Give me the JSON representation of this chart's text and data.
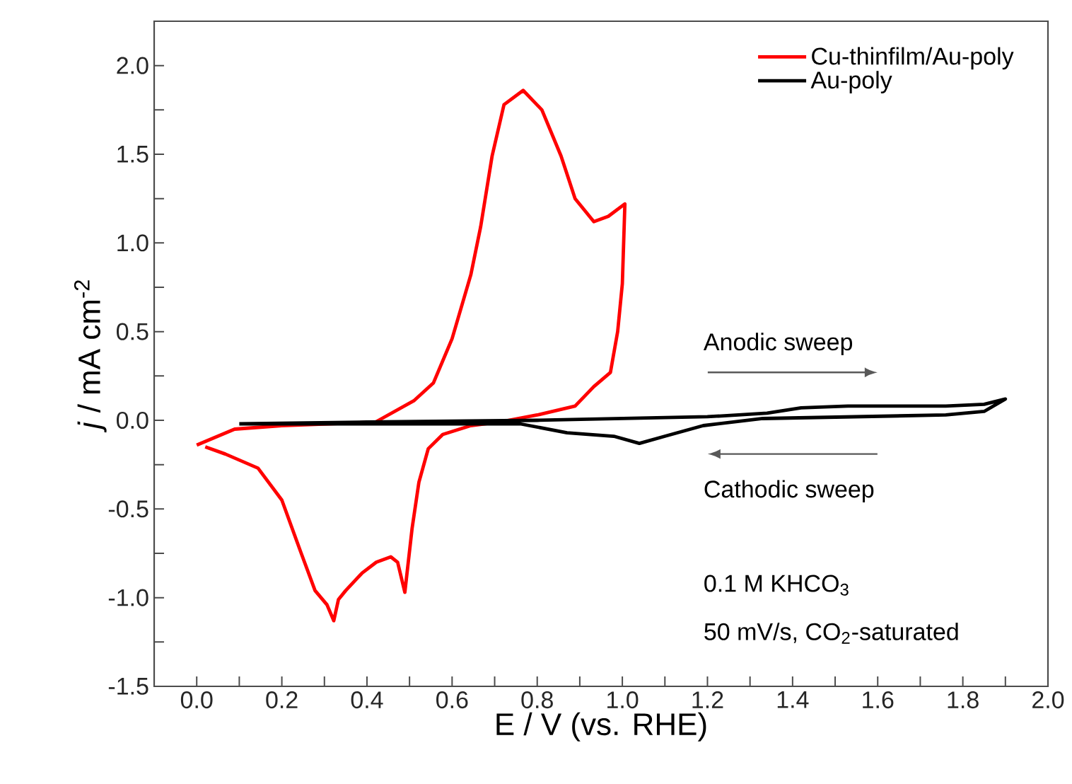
{
  "chart_data": {
    "type": "line",
    "xlabel": "E / V (vs. RHE)",
    "ylabel": "*j* / mA cm$^{-2}$",
    "xlim": [
      -0.1,
      2.0
    ],
    "ylim": [
      -1.5,
      2.25
    ],
    "xticks": [
      {
        "value": 0,
        "label": "0.0"
      },
      {
        "value": 0.1,
        "label": null
      },
      0.2,
      {
        "value": 0.3,
        "label": null
      },
      0.4,
      {
        "value": 0.5,
        "label": null
      },
      0.6,
      {
        "value": 0.7,
        "label": null
      },
      0.8,
      {
        "value": 0.9,
        "label": null
      },
      {
        "value": 1.0,
        "label": "1.0"
      },
      {
        "value": 1.1,
        "label": null
      },
      1.2,
      {
        "value": 1.3,
        "label": null
      },
      1.4,
      {
        "value": 1.5,
        "label": null
      },
      1.6,
      {
        "value": 1.7,
        "label": null
      },
      1.8,
      {
        "value": 1.9,
        "label": null
      },
      {
        "value": 2.0,
        "label": "2.0"
      }
    ],
    "yticks": [
      -1.5,
      {
        "value": -1.25,
        "label": null
      },
      {
        "value": -1.0,
        "label": "-1.0"
      },
      {
        "value": -0.75,
        "label": null
      },
      -0.5,
      {
        "value": -0.25,
        "label": null
      },
      {
        "value": 0,
        "label": "0.0"
      },
      {
        "value": 0.25,
        "label": null
      },
      0.5,
      {
        "value": 0.75,
        "label": null
      },
      {
        "value": 1.0,
        "label": "1.0"
      },
      {
        "value": 1.25,
        "label": null
      },
      1.5,
      {
        "value": 1.75,
        "label": null
      },
      {
        "value": 2.0,
        "label": "2.0"
      }
    ],
    "legend": "top right",
    "grid": false,
    "marker": "none",
    "line_style": "solid",
    "series": [
      {
        "name": "Cu-thinfilm/Au-poly",
        "color": "#ff0000",
        "x": [
          0.0,
          0.089,
          0.2,
          0.42,
          0.51,
          0.556,
          0.6,
          0.644,
          0.667,
          0.694,
          0.722,
          0.767,
          0.811,
          0.856,
          0.889,
          0.933,
          0.967,
          1.006,
          1.0,
          0.989,
          0.972,
          0.933,
          0.889,
          0.8,
          0.711,
          0.644,
          0.578,
          0.544,
          0.522,
          0.506,
          0.489,
          0.472,
          0.456,
          0.422,
          0.389,
          0.35,
          0.333,
          0.322,
          0.306,
          0.278,
          0.244,
          0.2,
          0.144,
          0.067,
          0.02
        ],
        "values": [
          -0.14,
          -0.05,
          -0.03,
          -0.01,
          0.11,
          0.21,
          0.46,
          0.82,
          1.09,
          1.49,
          1.78,
          1.86,
          1.75,
          1.49,
          1.25,
          1.12,
          1.15,
          1.22,
          0.77,
          0.5,
          0.27,
          0.19,
          0.08,
          0.03,
          -0.01,
          -0.03,
          -0.08,
          -0.16,
          -0.35,
          -0.61,
          -0.97,
          -0.8,
          -0.77,
          -0.8,
          -0.86,
          -0.96,
          -1.01,
          -1.13,
          -1.04,
          -0.96,
          -0.74,
          -0.45,
          -0.27,
          -0.19,
          -0.15
        ]
      },
      {
        "name": "Au-poly",
        "color": "#000000",
        "x": [
          0.1,
          0.4,
          0.8,
          1.2,
          1.34,
          1.42,
          1.53,
          1.76,
          1.85,
          1.9,
          1.85,
          1.76,
          1.33,
          1.19,
          1.1,
          1.04,
          0.98,
          0.87,
          0.76,
          0.4,
          0.12
        ],
        "values": [
          -0.02,
          -0.01,
          0.0,
          0.02,
          0.04,
          0.07,
          0.08,
          0.08,
          0.09,
          0.12,
          0.05,
          0.03,
          0.01,
          -0.03,
          -0.09,
          -0.13,
          -0.09,
          -0.07,
          -0.02,
          -0.02,
          -0.02
        ]
      }
    ],
    "annotations": [
      "Anodic sweep",
      "Cathodic sweep",
      "0.1 M KHCO$_{3}$",
      "50 mV/s, CO$_{2}$-saturated"
    ]
  }
}
